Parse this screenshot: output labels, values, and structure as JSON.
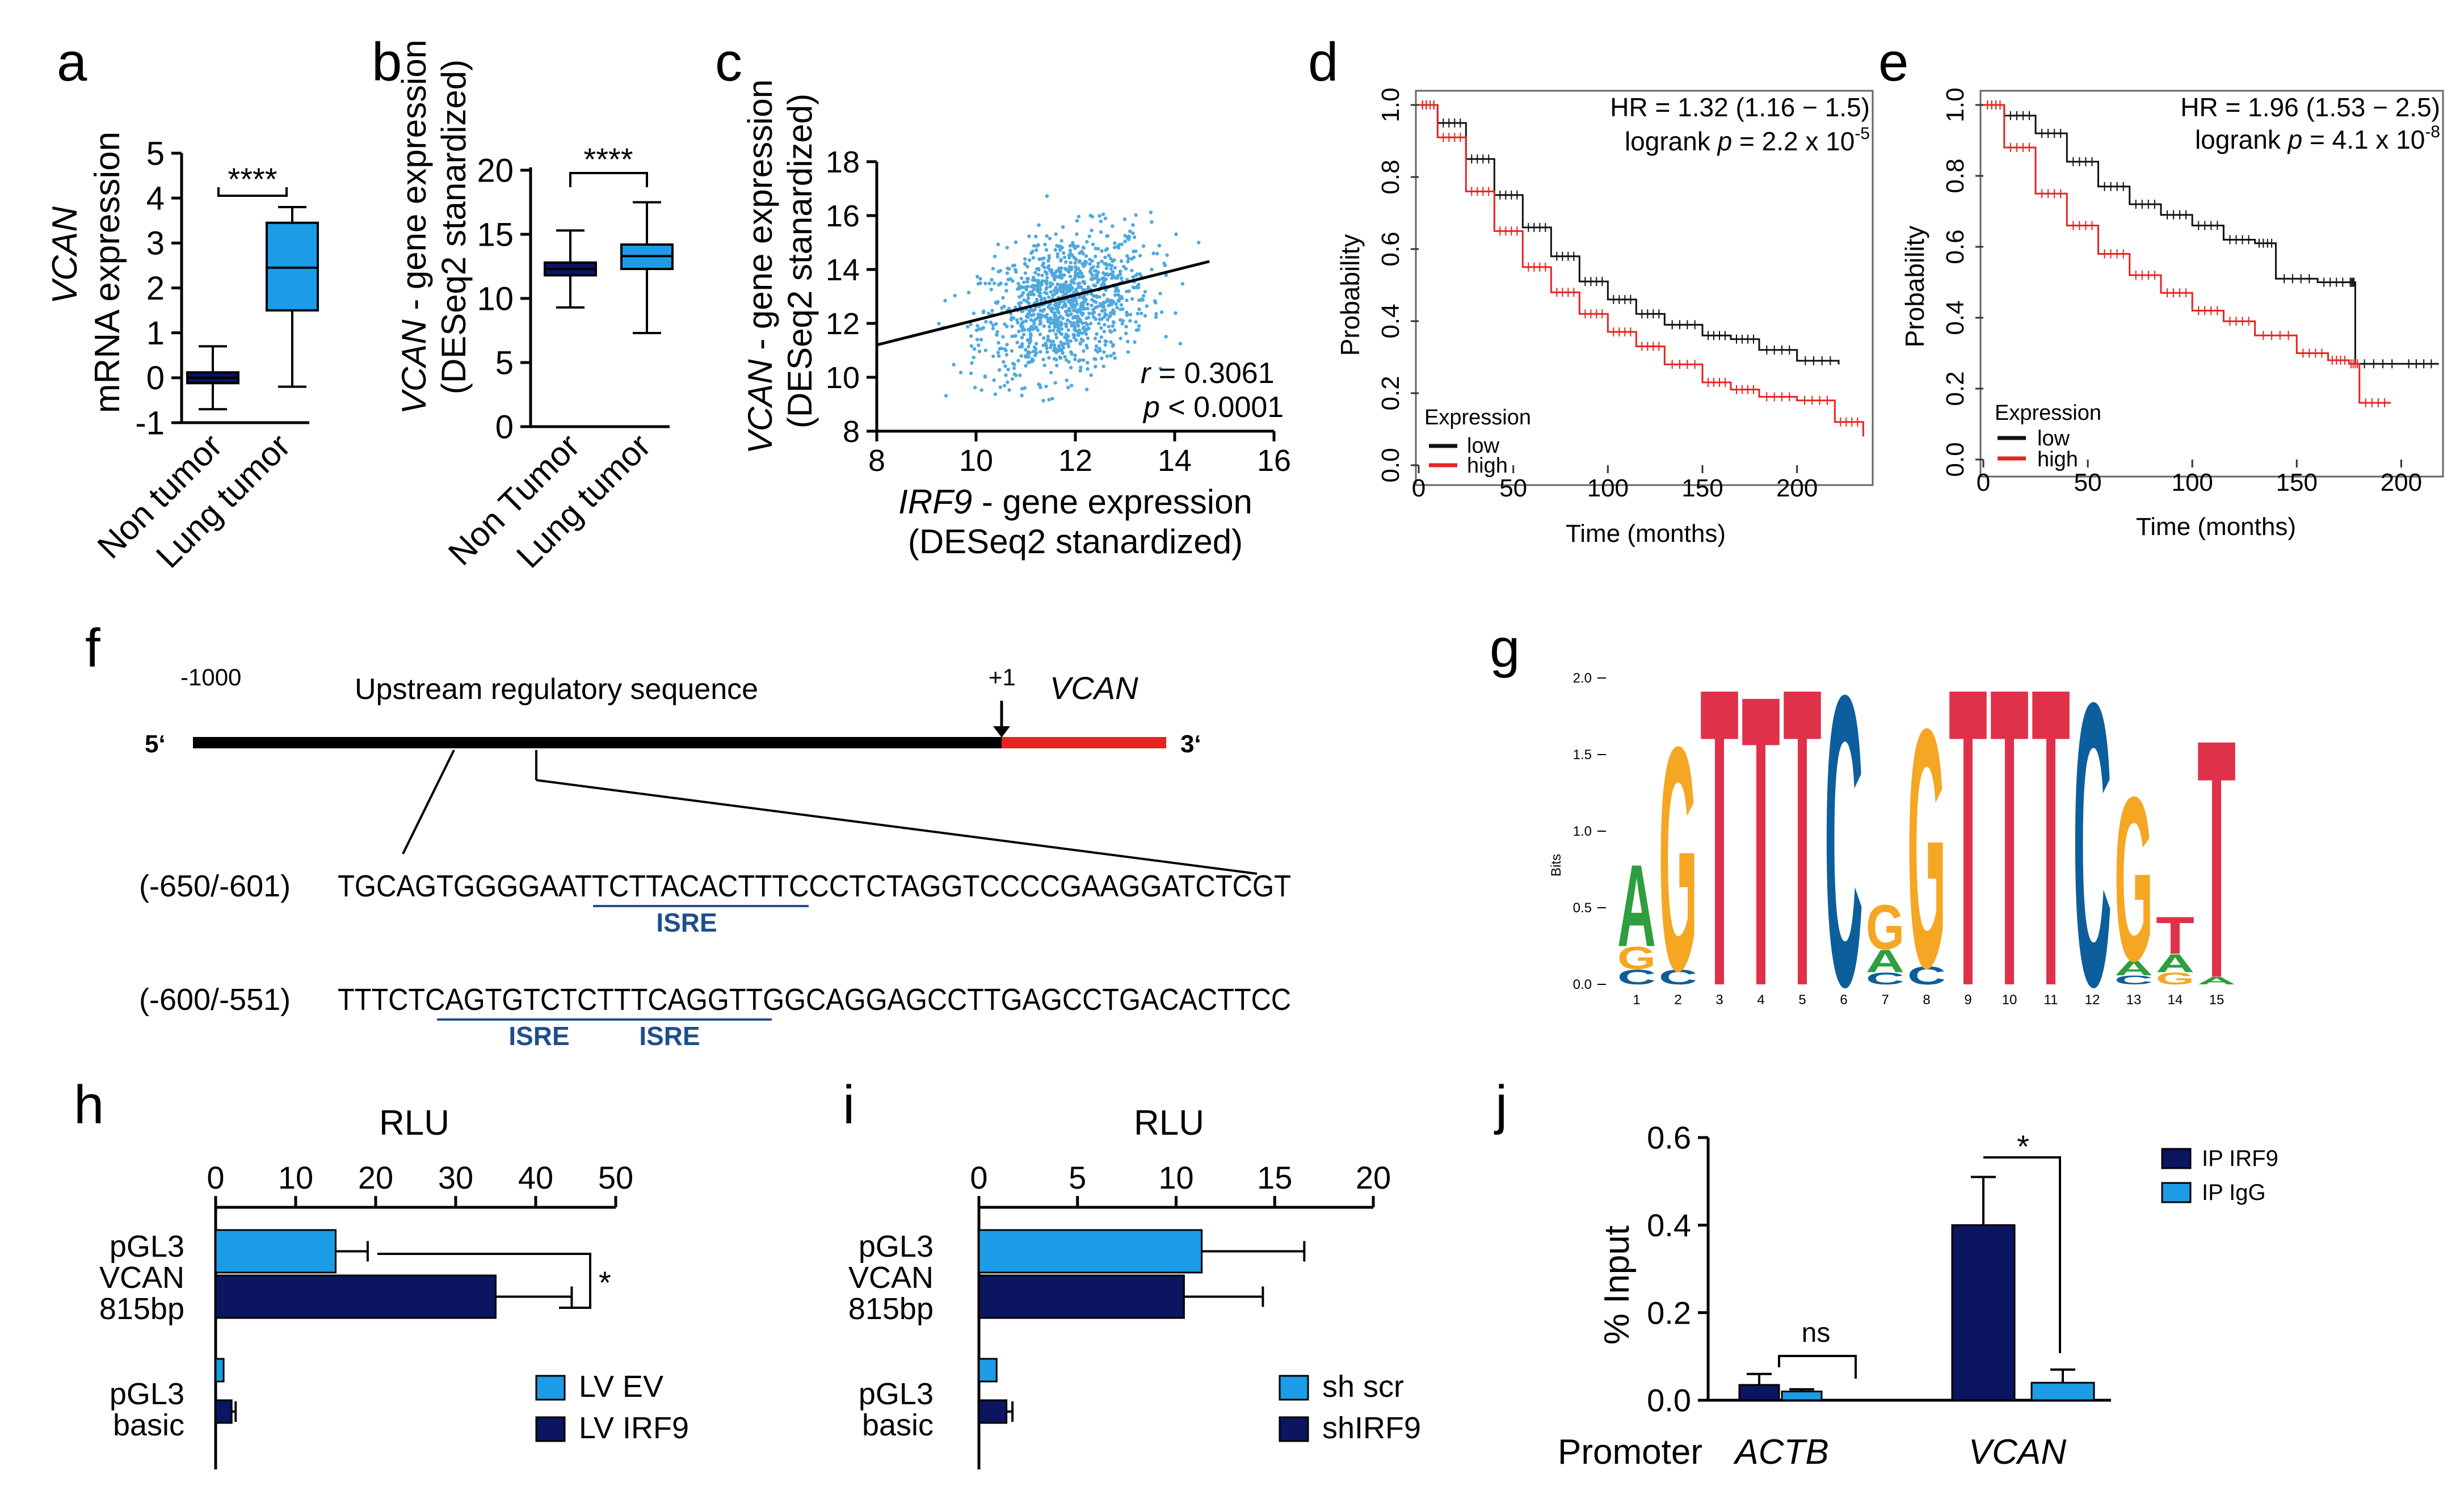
{
  "panel_labels": {
    "a": "a",
    "b": "b",
    "c": "c",
    "d": "d",
    "e": "e",
    "f": "f",
    "g": "g",
    "h": "h",
    "i": "i",
    "j": "j"
  },
  "colors": {
    "navy": "#0b1560",
    "light_blue": "#1c9ce6",
    "scatter": "#4fa8de",
    "red": "#e8231f",
    "black": "#111111",
    "isre": "#1f4e8c"
  },
  "panel_a": {
    "ylabel_gene": "VCAN",
    "ylabel_rest": "mRNA expression",
    "yticks": [
      "5",
      "4",
      "3",
      "2",
      "1",
      "0",
      "-1"
    ],
    "categories": [
      "Non tumor",
      "Lung tumor"
    ],
    "significance": "****"
  },
  "panel_b": {
    "ylabel_gene": "VCAN",
    "ylabel_rest": " - gene expression",
    "ylabel_line2": "(DESeq2 stanardized)",
    "yticks": [
      "20",
      "15",
      "10",
      "5",
      "0"
    ],
    "categories": [
      "Non Tumor",
      "Lung tumor"
    ],
    "significance": "****"
  },
  "panel_c": {
    "ylabel_gene": "VCAN",
    "ylabel_rest": " - gene expression",
    "ylabel_line2": "(DESeq2 stanardized)",
    "xlabel_gene": "IRF9",
    "xlabel_rest": " - gene expression",
    "xlabel_line2": "(DESeq2 stanardized)",
    "xticks": [
      "8",
      "10",
      "12",
      "14",
      "16"
    ],
    "yticks": [
      "18",
      "16",
      "14",
      "12",
      "10",
      "8"
    ],
    "r_label": "r",
    "r_value": " = 0.3061",
    "p_label": "p",
    "p_value": " < 0.0001"
  },
  "panel_d": {
    "hr_text": "HR = 1.32 (1.16 − 1.5)",
    "logrank_pre": "logrank ",
    "p": "p",
    "logrank_eq": " = 2.2 x 10",
    "logrank_exp": "-5",
    "ylabel": "Probability",
    "xlabel": "Time (months)",
    "xticks": [
      "0",
      "50",
      "100",
      "150",
      "200"
    ],
    "yticks": [
      "0.0",
      "0.2",
      "0.4",
      "0.6",
      "0.8",
      "1.0"
    ],
    "legend_title": "Expression",
    "legend_low": "low",
    "legend_high": "high"
  },
  "panel_e": {
    "hr_text": "HR = 1.96 (1.53 − 2.5)",
    "logrank_pre": "logrank ",
    "p": "p",
    "logrank_eq": " = 4.1 x 10",
    "logrank_exp": "-8",
    "ylabel": "Probability",
    "xlabel": "Time (months)",
    "xticks": [
      "0",
      "50",
      "100",
      "150",
      "200"
    ],
    "yticks": [
      "0.0",
      "0.2",
      "0.4",
      "0.6",
      "0.8",
      "1.0"
    ],
    "legend_title": "Expression",
    "legend_low": "low",
    "legend_high": "high"
  },
  "panel_f": {
    "pos_start": "-1000",
    "region_label": "Upstream regulatory sequence",
    "tss": "+1",
    "gene": "VCAN",
    "five_prime": "5‘",
    "three_prime": "3‘",
    "seq1_range": "(-650/-601)",
    "seq1": "TGCAGTGGGGAATTCTTACACTTTCCCTCTAGGTCCCCGAAGGATCTCGT",
    "seq2_range": "(-600/-551)",
    "seq2": "TTTCTCAGTGTCTCTTTCAGGTTGGCAGGAGCCTTGAGCCTGACACTTCC",
    "isre": "ISRE"
  },
  "panel_g": {
    "ylabel": "Bits",
    "yticks": [
      "2.0",
      "1.5",
      "1.0",
      "0.5",
      "0.0"
    ],
    "positions": [
      "1",
      "2",
      "3",
      "4",
      "5",
      "6",
      "7",
      "8",
      "9",
      "10",
      "11",
      "12",
      "13",
      "14",
      "15"
    ],
    "letters": [
      [
        [
          "A",
          0.55,
          "#2e9e3e"
        ],
        [
          "G",
          0.15,
          "#f5a623"
        ],
        [
          "C",
          0.1,
          "#0d5e9c"
        ]
      ],
      [
        [
          "G",
          1.5,
          "#f5a623"
        ],
        [
          "C",
          0.1,
          "#0d5e9c"
        ]
      ],
      [
        [
          "T",
          2.0,
          "#e0314a"
        ]
      ],
      [
        [
          "T",
          1.95,
          "#e0314a"
        ]
      ],
      [
        [
          "T",
          2.0,
          "#e0314a"
        ]
      ],
      [
        [
          "C",
          1.95,
          "#0d5e9c"
        ]
      ],
      [
        [
          "G",
          0.3,
          "#f5a623"
        ],
        [
          "A",
          0.15,
          "#2e9e3e"
        ],
        [
          "C",
          0.08,
          "#0d5e9c"
        ]
      ],
      [
        [
          "G",
          1.6,
          "#f5a623"
        ],
        [
          "C",
          0.12,
          "#0d5e9c"
        ]
      ],
      [
        [
          "T",
          2.0,
          "#e0314a"
        ]
      ],
      [
        [
          "T",
          2.0,
          "#e0314a"
        ]
      ],
      [
        [
          "T",
          2.0,
          "#e0314a"
        ]
      ],
      [
        [
          "C",
          1.9,
          "#0d5e9c"
        ]
      ],
      [
        [
          "G",
          1.1,
          "#f5a623"
        ],
        [
          "A",
          0.1,
          "#2e9e3e"
        ],
        [
          "C",
          0.06,
          "#0d5e9c"
        ]
      ],
      [
        [
          "T",
          0.25,
          "#e0314a"
        ],
        [
          "A",
          0.12,
          "#2e9e3e"
        ],
        [
          "G",
          0.08,
          "#f5a623"
        ]
      ],
      [
        [
          "T",
          1.6,
          "#e0314a"
        ],
        [
          "A",
          0.05,
          "#2e9e3e"
        ]
      ]
    ]
  },
  "panel_h": {
    "title": "RLU",
    "xticks": [
      "0",
      "10",
      "20",
      "30",
      "40",
      "50"
    ],
    "group1": [
      "pGL3",
      "VCAN",
      "815bp"
    ],
    "group2": [
      "pGL3",
      "basic"
    ],
    "legend": [
      "LV EV",
      "LV IRF9"
    ],
    "significance": "*"
  },
  "panel_i": {
    "title": "RLU",
    "xticks": [
      "0",
      "5",
      "10",
      "15",
      "20"
    ],
    "group1": [
      "pGL3",
      "VCAN",
      "815bp"
    ],
    "group2": [
      "pGL3",
      "basic"
    ],
    "legend": [
      "sh scr",
      "shIRF9"
    ]
  },
  "panel_j": {
    "ylabel": "% Input",
    "yticks": [
      "0.0",
      "0.2",
      "0.4",
      "0.6"
    ],
    "promoter_label": "Promoter",
    "categories": [
      "ACTB",
      "VCAN"
    ],
    "legend": [
      "IP IRF9",
      "IP IgG"
    ],
    "ns": "ns",
    "significance": "*"
  },
  "chart_data": [
    {
      "id": "a",
      "type": "box",
      "title": "",
      "ylabel": "VCAN mRNA expression",
      "ylim": [
        -1,
        5
      ],
      "categories": [
        "Non tumor",
        "Lung tumor"
      ],
      "boxes": [
        {
          "min": -0.7,
          "q1": -0.12,
          "median": 0.0,
          "q3": 0.12,
          "max": 0.7
        },
        {
          "min": -0.2,
          "q1": 1.5,
          "median": 2.45,
          "q3": 3.45,
          "max": 3.8
        }
      ]
    },
    {
      "id": "b",
      "type": "box",
      "ylabel": "VCAN - gene expression (DESeq2 stanardized)",
      "ylim": [
        0,
        20
      ],
      "categories": [
        "Non Tumor",
        "Lung tumor"
      ],
      "boxes": [
        {
          "min": 9.3,
          "q1": 11.8,
          "median": 12.3,
          "q3": 12.8,
          "max": 15.3
        },
        {
          "min": 7.3,
          "q1": 12.3,
          "median": 13.3,
          "q3": 14.2,
          "max": 17.5
        }
      ]
    },
    {
      "id": "c",
      "type": "scatter",
      "xlabel": "IRF9 - gene expression (DESeq2 stanardized)",
      "ylabel": "VCAN - gene expression (DESeq2 stanardized)",
      "xlim": [
        8,
        16
      ],
      "ylim": [
        8,
        18
      ],
      "cloud": {
        "cx": 11.8,
        "cy": 12.7,
        "sx": 0.85,
        "sy": 1.35,
        "n": 1100
      },
      "fit": {
        "x": [
          8,
          14.7
        ],
        "y": [
          11.2,
          14.3
        ]
      },
      "r": 0.3061,
      "p": "< 0.0001"
    },
    {
      "id": "d",
      "type": "line",
      "xlabel": "Time (months)",
      "ylabel": "Probability",
      "xlim": [
        0,
        240
      ],
      "ylim": [
        0,
        1
      ],
      "series": [
        {
          "name": "low",
          "color": "#111111",
          "x": [
            0,
            10,
            25,
            40,
            55,
            70,
            85,
            100,
            115,
            130,
            150,
            165,
            180,
            200,
            222
          ],
          "y": [
            1.0,
            0.95,
            0.85,
            0.75,
            0.66,
            0.58,
            0.51,
            0.46,
            0.42,
            0.39,
            0.36,
            0.35,
            0.32,
            0.29,
            0.28
          ]
        },
        {
          "name": "high",
          "color": "#e8231f",
          "x": [
            0,
            10,
            25,
            40,
            55,
            70,
            85,
            100,
            115,
            130,
            150,
            165,
            180,
            200,
            220,
            235
          ],
          "y": [
            1.0,
            0.91,
            0.76,
            0.65,
            0.55,
            0.48,
            0.42,
            0.37,
            0.33,
            0.28,
            0.23,
            0.21,
            0.19,
            0.18,
            0.12,
            0.08
          ]
        }
      ]
    },
    {
      "id": "e",
      "type": "line",
      "xlabel": "Time (months)",
      "ylabel": "Probability",
      "xlim": [
        0,
        220
      ],
      "ylim": [
        0,
        1
      ],
      "series": [
        {
          "name": "low",
          "color": "#111111",
          "x": [
            0,
            10,
            25,
            40,
            55,
            70,
            85,
            100,
            115,
            130,
            140,
            160,
            175,
            178,
            200,
            218
          ],
          "y": [
            1.0,
            0.97,
            0.92,
            0.84,
            0.77,
            0.72,
            0.69,
            0.66,
            0.62,
            0.61,
            0.51,
            0.5,
            0.5,
            0.27,
            0.27,
            0.27
          ]
        },
        {
          "name": "high",
          "color": "#e8231f",
          "x": [
            0,
            10,
            25,
            40,
            55,
            70,
            85,
            100,
            115,
            130,
            150,
            165,
            175,
            180,
            195
          ],
          "y": [
            1.0,
            0.88,
            0.75,
            0.66,
            0.58,
            0.52,
            0.47,
            0.42,
            0.39,
            0.35,
            0.3,
            0.28,
            0.27,
            0.16,
            0.16
          ]
        }
      ]
    },
    {
      "id": "h",
      "type": "bar",
      "orientation": "horizontal",
      "title": "RLU",
      "xlim": [
        0,
        50
      ],
      "categories": [
        "pGL3 VCAN 815bp",
        "pGL3 basic"
      ],
      "series": [
        {
          "name": "LV EV",
          "color": "#1c9ce6",
          "values": [
            15,
            1
          ],
          "errors": [
            4,
            0
          ]
        },
        {
          "name": "LV IRF9",
          "color": "#0b1560",
          "values": [
            35,
            2
          ],
          "errors": [
            9.5,
            0.5
          ]
        }
      ]
    },
    {
      "id": "i",
      "type": "bar",
      "orientation": "horizontal",
      "title": "RLU",
      "xlim": [
        0,
        20
      ],
      "categories": [
        "pGL3 VCAN 815bp",
        "pGL3 basic"
      ],
      "series": [
        {
          "name": "sh scr",
          "color": "#1c9ce6",
          "values": [
            11.3,
            0.9
          ],
          "errors": [
            5.2,
            0
          ]
        },
        {
          "name": "shIRF9",
          "color": "#0b1560",
          "values": [
            10.4,
            1.4
          ],
          "errors": [
            4,
            0.3
          ]
        }
      ]
    },
    {
      "id": "j",
      "type": "bar",
      "ylabel": "% Input",
      "ylim": [
        0,
        0.6
      ],
      "categories": [
        "ACTB",
        "VCAN"
      ],
      "series": [
        {
          "name": "IP IRF9",
          "color": "#0b1560",
          "values": [
            0.035,
            0.4
          ],
          "errors": [
            0.025,
            0.11
          ]
        },
        {
          "name": "IP IgG",
          "color": "#1c9ce6",
          "values": [
            0.02,
            0.04
          ],
          "errors": [
            0.005,
            0.03
          ]
        }
      ]
    }
  ]
}
